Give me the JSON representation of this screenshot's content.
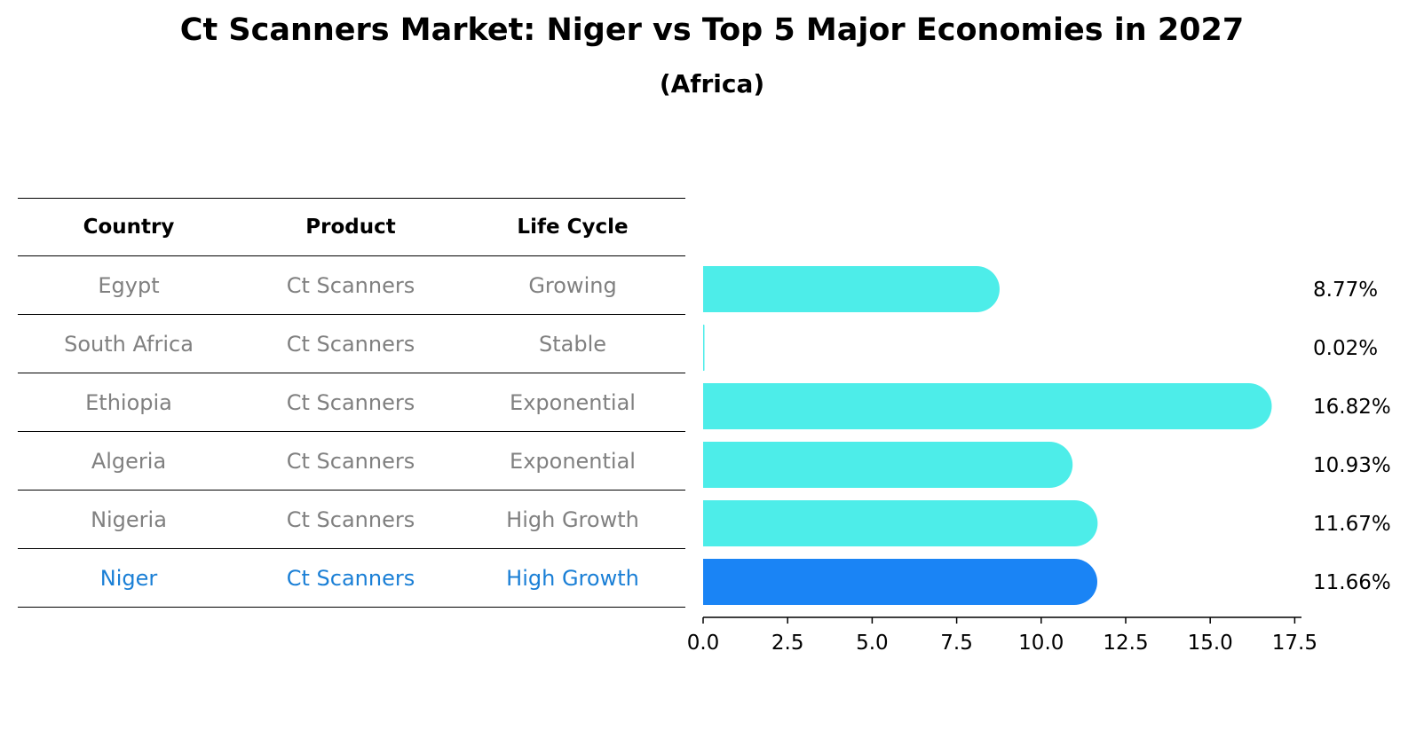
{
  "title": "Ct Scanners Market: Niger vs Top 5 Major Economies in 2027",
  "subtitle": "(Africa)",
  "table": {
    "headers": [
      "Country",
      "Product",
      "Life Cycle"
    ],
    "rows": [
      {
        "country": "Egypt",
        "product": "Ct Scanners",
        "life_cycle": "Growing"
      },
      {
        "country": "South Africa",
        "product": "Ct Scanners",
        "life_cycle": "Stable"
      },
      {
        "country": "Ethiopia",
        "product": "Ct Scanners",
        "life_cycle": "Exponential"
      },
      {
        "country": "Algeria",
        "product": "Ct Scanners",
        "life_cycle": "Exponential"
      },
      {
        "country": "Nigeria",
        "product": "Ct Scanners",
        "life_cycle": "High Growth"
      },
      {
        "country": "Niger",
        "product": "Ct Scanners",
        "life_cycle": "High Growth"
      }
    ]
  },
  "colors": {
    "bar": "#4dede9",
    "highlight_bar": "#1a84f5",
    "highlight_text": "#1a7fd6",
    "muted_text": "#808080"
  },
  "chart_data": {
    "type": "bar",
    "orientation": "horizontal",
    "title": "Ct Scanners Market: Niger vs Top 5 Major Economies in 2027",
    "subtitle": "(Africa)",
    "categories": [
      "Egypt",
      "South Africa",
      "Ethiopia",
      "Algeria",
      "Nigeria",
      "Niger"
    ],
    "values": [
      8.77,
      0.02,
      16.82,
      10.93,
      11.67,
      11.66
    ],
    "value_labels": [
      "8.77%",
      "0.02%",
      "16.82%",
      "10.93%",
      "11.67%",
      "11.66%"
    ],
    "highlight": "Niger",
    "xlim": [
      0,
      17.7
    ],
    "xticks": [
      0.0,
      2.5,
      5.0,
      7.5,
      10.0,
      12.5,
      15.0,
      17.5
    ],
    "xtick_labels": [
      "0.0",
      "2.5",
      "5.0",
      "7.5",
      "10.0",
      "12.5",
      "15.0",
      "17.5"
    ],
    "xlabel": "",
    "ylabel": "",
    "grid": false
  }
}
